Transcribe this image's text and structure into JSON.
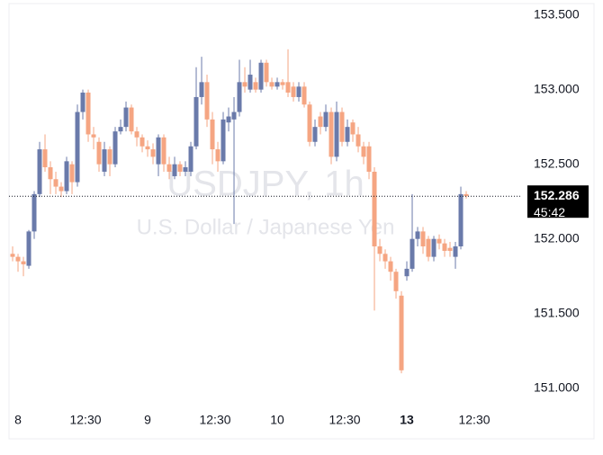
{
  "chart_data": {
    "type": "candlestick",
    "watermark_title": "USDJPY, 1h",
    "watermark_subtitle": "U.S. Dollar / Japanese Yen",
    "up_color": "#6a7aaa",
    "down_color": "#f5a582",
    "x": [
      -1,
      0,
      1,
      2,
      3,
      4,
      5,
      6,
      7,
      8,
      9,
      10,
      11,
      12,
      13,
      14,
      15,
      16,
      17,
      18,
      19,
      20,
      21,
      22,
      23,
      24,
      25,
      26,
      27,
      28,
      29,
      30,
      31,
      32,
      33,
      34,
      35,
      36,
      37,
      38,
      39,
      40,
      41,
      42,
      43,
      44,
      45,
      46,
      47,
      48,
      49,
      50,
      51,
      52,
      53,
      54,
      55,
      56,
      57,
      58,
      59,
      60,
      61,
      62,
      63,
      64,
      65,
      66,
      67,
      68,
      69,
      70,
      71,
      72,
      73,
      74,
      75,
      76,
      77,
      78,
      79,
      80,
      81,
      82,
      83
    ],
    "open": [
      151.9,
      151.88,
      151.85,
      151.82,
      152.05,
      152.3,
      152.6,
      152.48,
      152.4,
      152.35,
      152.32,
      152.5,
      152.38,
      152.85,
      152.98,
      152.7,
      152.65,
      152.45,
      152.6,
      152.5,
      152.72,
      152.75,
      152.88,
      152.72,
      152.68,
      152.62,
      152.6,
      152.5,
      152.68,
      152.5,
      152.42,
      152.5,
      152.45,
      152.45,
      152.62,
      152.95,
      153.05,
      152.8,
      152.6,
      152.52,
      152.78,
      152.8,
      152.85,
      153.05,
      153.0,
      153.05,
      153.0,
      153.18,
      153.05,
      153.02,
      153.05,
      153.05,
      153.02,
      152.95,
      153.02,
      152.9,
      152.65,
      152.82,
      152.75,
      152.85,
      152.55,
      152.85,
      152.65,
      152.78,
      152.7,
      152.62,
      152.62,
      152.45,
      151.95,
      151.9,
      151.85,
      151.78,
      151.62,
      151.75,
      151.8,
      152.0,
      152.05,
      152.0,
      151.88,
      152.0,
      151.97,
      151.94,
      151.88,
      151.95,
      152.3
    ],
    "high": [
      151.95,
      151.9,
      151.88,
      152.06,
      152.32,
      152.65,
      152.7,
      152.52,
      152.45,
      152.38,
      152.55,
      152.52,
      152.9,
      153.0,
      153.0,
      152.75,
      152.68,
      152.65,
      152.62,
      152.75,
      152.8,
      152.92,
      152.9,
      152.75,
      152.7,
      152.66,
      152.64,
      152.7,
      152.7,
      152.55,
      152.55,
      152.52,
      152.52,
      152.65,
      153.15,
      153.22,
      153.1,
      152.85,
      152.65,
      152.85,
      152.88,
      152.95,
      153.2,
      153.15,
      153.2,
      153.08,
      153.2,
      153.2,
      153.08,
      153.08,
      153.07,
      153.27,
      153.05,
      153.05,
      153.05,
      152.92,
      152.8,
      152.85,
      152.9,
      152.88,
      152.92,
      152.88,
      152.8,
      152.8,
      152.75,
      152.65,
      152.65,
      152.48,
      152.0,
      151.93,
      151.88,
      151.8,
      151.65,
      151.85,
      152.3,
      152.08,
      152.08,
      152.02,
      152.02,
      152.03,
      152.0,
      151.98,
      151.98,
      152.35,
      152.32
    ],
    "low": [
      151.85,
      151.78,
      151.75,
      151.8,
      152.0,
      152.28,
      152.45,
      152.3,
      152.3,
      152.28,
      152.3,
      152.3,
      152.35,
      152.8,
      152.65,
      152.6,
      152.45,
      152.42,
      152.42,
      152.48,
      152.7,
      152.72,
      152.7,
      152.62,
      152.58,
      152.55,
      152.5,
      152.42,
      152.45,
      152.4,
      152.4,
      152.42,
      152.42,
      152.42,
      152.6,
      152.9,
      152.75,
      152.5,
      152.45,
      152.5,
      152.72,
      152.1,
      152.82,
      152.98,
      152.98,
      152.98,
      152.98,
      153.02,
      153.0,
      153.0,
      153.0,
      152.95,
      152.92,
      152.92,
      152.88,
      152.62,
      152.62,
      152.7,
      152.72,
      152.5,
      152.52,
      152.62,
      152.62,
      152.65,
      152.58,
      152.5,
      152.4,
      151.52,
      151.85,
      151.8,
      151.72,
      151.6,
      151.1,
      151.72,
      151.78,
      151.95,
      151.9,
      151.85,
      151.85,
      151.93,
      151.88,
      151.88,
      151.8,
      151.93,
      152.27
    ],
    "close": [
      151.88,
      151.85,
      151.83,
      152.05,
      152.3,
      152.6,
      152.48,
      152.4,
      152.35,
      152.32,
      152.52,
      152.38,
      152.85,
      152.98,
      152.7,
      152.68,
      152.5,
      152.6,
      152.5,
      152.72,
      152.75,
      152.88,
      152.72,
      152.68,
      152.62,
      152.6,
      152.55,
      152.68,
      152.5,
      152.45,
      152.5,
      152.45,
      152.48,
      152.62,
      152.95,
      153.05,
      152.8,
      152.6,
      152.52,
      152.8,
      152.82,
      152.85,
      153.05,
      153.02,
      153.1,
      153.0,
      153.18,
      153.05,
      153.02,
      153.05,
      153.03,
      152.98,
      152.95,
      153.02,
      152.9,
      152.65,
      152.75,
      152.75,
      152.85,
      152.55,
      152.85,
      152.65,
      152.75,
      152.7,
      152.62,
      152.55,
      152.45,
      151.95,
      151.9,
      151.85,
      151.78,
      151.65,
      151.12,
      151.8,
      152.0,
      152.05,
      151.95,
      151.88,
      152.0,
      151.97,
      151.92,
      151.92,
      151.95,
      152.3,
      152.286
    ],
    "last_price": 152.286,
    "countdown": "45:42",
    "xlim": [
      -1.67,
      93.33
    ],
    "ylim": [
      150.89,
      153.57
    ],
    "xticks": [
      {
        "value": 0,
        "label": "8"
      },
      {
        "value": 12.5,
        "label": "12:30"
      },
      {
        "value": 24,
        "label": "9"
      },
      {
        "value": 36.5,
        "label": "12:30"
      },
      {
        "value": 48,
        "label": "10"
      },
      {
        "value": 60.5,
        "label": "12:30"
      },
      {
        "value": 72,
        "label": "13"
      },
      {
        "value": 84.5,
        "label": "12:30"
      }
    ],
    "yticks": [
      {
        "value": 153.5,
        "label": "153.500"
      },
      {
        "value": 153,
        "label": "153.000"
      },
      {
        "value": 152.5,
        "label": "152.500"
      },
      {
        "value": 152,
        "label": "152.000"
      },
      {
        "value": 151.5,
        "label": "151.500"
      },
      {
        "value": 151,
        "label": "151.000"
      }
    ]
  }
}
